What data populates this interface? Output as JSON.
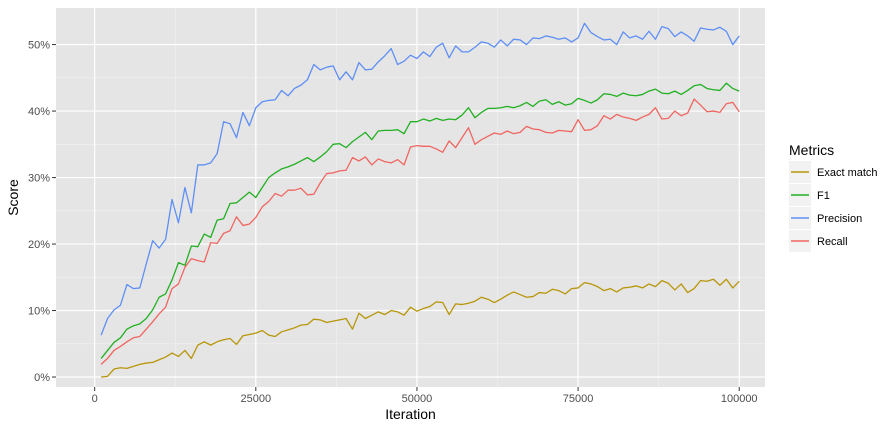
{
  "chart_data": {
    "type": "line",
    "xlabel": "Iteration",
    "ylabel": "Score",
    "xlim": [
      -6000,
      104000
    ],
    "ylim": [
      -0.015,
      0.555
    ],
    "x_ticks": [
      0,
      25000,
      50000,
      75000,
      100000
    ],
    "x_tick_labels": [
      "0",
      "25000",
      "50000",
      "75000",
      "100000"
    ],
    "y_ticks": [
      0,
      0.1,
      0.2,
      0.3,
      0.4,
      0.5
    ],
    "y_tick_labels": [
      "0%",
      "10%",
      "20%",
      "30%",
      "40%",
      "50%"
    ],
    "grid": true,
    "panel_background": "#e5e5e5",
    "legend": {
      "title": "Metrics",
      "position": "right",
      "entries": [
        "Exact match",
        "F1",
        "Precision",
        "Recall"
      ]
    },
    "x": [
      1000,
      2000,
      3000,
      4000,
      5000,
      6000,
      7000,
      8000,
      9000,
      10000,
      11000,
      12000,
      13000,
      14000,
      15000,
      16000,
      17000,
      18000,
      19000,
      20000,
      21000,
      22000,
      23000,
      24000,
      25000,
      26000,
      27000,
      28000,
      29000,
      30000,
      31000,
      32000,
      33000,
      34000,
      35000,
      36000,
      37000,
      38000,
      39000,
      40000,
      41000,
      42000,
      43000,
      44000,
      45000,
      46000,
      47000,
      48000,
      49000,
      50000,
      51000,
      52000,
      53000,
      54000,
      55000,
      56000,
      57000,
      58000,
      59000,
      60000,
      61000,
      62000,
      63000,
      64000,
      65000,
      66000,
      67000,
      68000,
      69000,
      70000,
      71000,
      72000,
      73000,
      74000,
      75000,
      76000,
      77000,
      78000,
      79000,
      80000,
      81000,
      82000,
      83000,
      84000,
      85000,
      86000,
      87000,
      88000,
      89000,
      90000,
      91000,
      92000,
      93000,
      94000,
      95000,
      96000,
      97000,
      98000,
      99000,
      100000
    ],
    "series": [
      {
        "name": "Exact match",
        "color": "#b8960a",
        "values": [
          0.0,
          0.001,
          0.012,
          0.014,
          0.013,
          0.016,
          0.019,
          0.021,
          0.022,
          0.026,
          0.03,
          0.036,
          0.031,
          0.04,
          0.028,
          0.048,
          0.053,
          0.048,
          0.053,
          0.056,
          0.058,
          0.049,
          0.062,
          0.064,
          0.066,
          0.07,
          0.063,
          0.061,
          0.068,
          0.071,
          0.074,
          0.078,
          0.079,
          0.087,
          0.086,
          0.082,
          0.084,
          0.086,
          0.088,
          0.072,
          0.096,
          0.088,
          0.093,
          0.098,
          0.094,
          0.1,
          0.098,
          0.093,
          0.105,
          0.099,
          0.103,
          0.106,
          0.113,
          0.112,
          0.094,
          0.11,
          0.109,
          0.111,
          0.114,
          0.12,
          0.117,
          0.112,
          0.117,
          0.123,
          0.128,
          0.124,
          0.12,
          0.121,
          0.127,
          0.126,
          0.132,
          0.13,
          0.125,
          0.133,
          0.134,
          0.142,
          0.14,
          0.136,
          0.13,
          0.133,
          0.128,
          0.134,
          0.135,
          0.137,
          0.134,
          0.14,
          0.136,
          0.145,
          0.141,
          0.131,
          0.14,
          0.127,
          0.133,
          0.145,
          0.144,
          0.147,
          0.138,
          0.147,
          0.134,
          0.144
        ]
      },
      {
        "name": "F1",
        "color": "#21b021",
        "values": [
          0.028,
          0.04,
          0.052,
          0.059,
          0.072,
          0.077,
          0.08,
          0.088,
          0.101,
          0.12,
          0.125,
          0.146,
          0.172,
          0.168,
          0.197,
          0.196,
          0.215,
          0.21,
          0.236,
          0.238,
          0.261,
          0.262,
          0.27,
          0.278,
          0.27,
          0.285,
          0.3,
          0.307,
          0.313,
          0.316,
          0.32,
          0.325,
          0.33,
          0.324,
          0.331,
          0.339,
          0.35,
          0.351,
          0.345,
          0.354,
          0.361,
          0.368,
          0.357,
          0.37,
          0.371,
          0.371,
          0.372,
          0.366,
          0.384,
          0.384,
          0.388,
          0.385,
          0.389,
          0.386,
          0.388,
          0.387,
          0.394,
          0.405,
          0.39,
          0.398,
          0.404,
          0.404,
          0.405,
          0.407,
          0.405,
          0.408,
          0.413,
          0.407,
          0.415,
          0.417,
          0.41,
          0.414,
          0.409,
          0.411,
          0.419,
          0.416,
          0.412,
          0.417,
          0.426,
          0.425,
          0.422,
          0.427,
          0.424,
          0.423,
          0.425,
          0.43,
          0.433,
          0.427,
          0.426,
          0.43,
          0.425,
          0.431,
          0.438,
          0.44,
          0.434,
          0.432,
          0.431,
          0.442,
          0.434,
          0.43
        ]
      },
      {
        "name": "Precision",
        "color": "#5e8ff5",
        "values": [
          0.063,
          0.088,
          0.101,
          0.108,
          0.139,
          0.133,
          0.134,
          0.17,
          0.205,
          0.194,
          0.207,
          0.267,
          0.232,
          0.285,
          0.247,
          0.319,
          0.319,
          0.322,
          0.336,
          0.384,
          0.381,
          0.36,
          0.398,
          0.378,
          0.405,
          0.414,
          0.416,
          0.417,
          0.431,
          0.423,
          0.434,
          0.439,
          0.447,
          0.47,
          0.462,
          0.466,
          0.468,
          0.447,
          0.459,
          0.447,
          0.473,
          0.462,
          0.463,
          0.474,
          0.483,
          0.494,
          0.47,
          0.475,
          0.484,
          0.479,
          0.489,
          0.482,
          0.496,
          0.502,
          0.48,
          0.498,
          0.489,
          0.489,
          0.496,
          0.504,
          0.502,
          0.496,
          0.507,
          0.498,
          0.508,
          0.507,
          0.5,
          0.51,
          0.509,
          0.513,
          0.511,
          0.508,
          0.51,
          0.504,
          0.51,
          0.532,
          0.518,
          0.512,
          0.507,
          0.508,
          0.5,
          0.519,
          0.51,
          0.513,
          0.508,
          0.52,
          0.508,
          0.527,
          0.524,
          0.512,
          0.519,
          0.513,
          0.505,
          0.525,
          0.523,
          0.522,
          0.526,
          0.52,
          0.5,
          0.513
        ]
      },
      {
        "name": "Recall",
        "color": "#f06560",
        "values": [
          0.019,
          0.028,
          0.04,
          0.046,
          0.053,
          0.059,
          0.061,
          0.072,
          0.083,
          0.095,
          0.105,
          0.133,
          0.14,
          0.165,
          0.178,
          0.175,
          0.173,
          0.202,
          0.201,
          0.216,
          0.22,
          0.241,
          0.228,
          0.23,
          0.24,
          0.256,
          0.264,
          0.276,
          0.272,
          0.281,
          0.281,
          0.284,
          0.274,
          0.275,
          0.292,
          0.306,
          0.307,
          0.31,
          0.311,
          0.33,
          0.325,
          0.331,
          0.319,
          0.328,
          0.324,
          0.322,
          0.327,
          0.319,
          0.346,
          0.348,
          0.347,
          0.347,
          0.343,
          0.338,
          0.355,
          0.345,
          0.36,
          0.375,
          0.35,
          0.357,
          0.362,
          0.367,
          0.365,
          0.37,
          0.366,
          0.368,
          0.377,
          0.373,
          0.372,
          0.368,
          0.367,
          0.371,
          0.37,
          0.369,
          0.387,
          0.371,
          0.372,
          0.378,
          0.393,
          0.388,
          0.395,
          0.391,
          0.389,
          0.386,
          0.391,
          0.395,
          0.405,
          0.388,
          0.389,
          0.4,
          0.393,
          0.397,
          0.418,
          0.409,
          0.399,
          0.4,
          0.398,
          0.411,
          0.413,
          0.399
        ]
      }
    ]
  }
}
